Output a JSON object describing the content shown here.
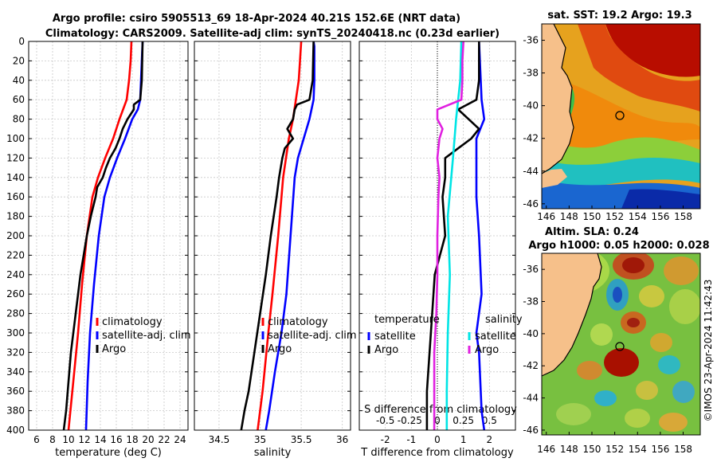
{
  "title_line1": "Argo profile: csiro 5905513_69 18-Apr-2024 40.21S 152.6E (NRT data)",
  "title_line2": "Climatology: CARS2009. Satellite-adj clim: synTS_20240418.nc (0.23d earlier)",
  "credit": "©IMOS 23-Apr-2024 11:42:43",
  "colors": {
    "climatology": "#ff0000",
    "satellite": "#0000ff",
    "argo": "#000000",
    "salinity_sat": "#00e5e5",
    "salinity_argo": "#e020e0"
  },
  "chart_data": [
    {
      "type": "line",
      "name": "temperature",
      "xlabel": "temperature (deg C)",
      "xlim": [
        5,
        25
      ],
      "xticks": [
        "6",
        "8",
        "10",
        "12",
        "14",
        "16",
        "18",
        "20",
        "22",
        "24"
      ],
      "ylim": [
        0,
        400
      ],
      "yticks": [
        "0",
        "20",
        "40",
        "60",
        "80",
        "100",
        "120",
        "140",
        "160",
        "180",
        "200",
        "220",
        "240",
        "260",
        "280",
        "300",
        "320",
        "340",
        "360",
        "380",
        "400"
      ],
      "legend": [
        "climatology",
        "satellite-adj. clim",
        "Argo"
      ],
      "series": [
        {
          "name": "climatology",
          "depth": [
            0,
            20,
            40,
            60,
            80,
            100,
            120,
            140,
            160,
            200,
            250,
            300,
            350,
            400
          ],
          "values": [
            17.9,
            17.8,
            17.6,
            17.3,
            16.4,
            15.6,
            14.6,
            13.7,
            13.0,
            12.3,
            11.7,
            11.2,
            10.6,
            10.0
          ]
        },
        {
          "name": "satellite-adj. clim",
          "depth": [
            0,
            20,
            40,
            60,
            70,
            80,
            100,
            120,
            140,
            160,
            200,
            250,
            300,
            350,
            400
          ],
          "values": [
            19.3,
            19.2,
            19.1,
            19.0,
            18.7,
            18.0,
            17.1,
            16.1,
            15.2,
            14.5,
            13.8,
            13.2,
            12.7,
            12.4,
            12.2
          ]
        },
        {
          "name": "Argo",
          "depth": [
            0,
            40,
            60,
            65,
            70,
            80,
            90,
            100,
            110,
            120,
            130,
            140,
            150,
            160,
            180,
            200,
            220,
            240,
            260,
            280,
            300,
            320,
            340,
            360,
            380,
            400
          ],
          "values": [
            19.3,
            19.2,
            19.0,
            18.2,
            18.2,
            17.4,
            16.8,
            16.4,
            15.9,
            15.2,
            14.7,
            14.3,
            13.6,
            13.4,
            12.8,
            12.3,
            11.9,
            11.5,
            11.2,
            10.9,
            10.6,
            10.3,
            10.1,
            9.9,
            9.7,
            9.4
          ]
        }
      ]
    },
    {
      "type": "line",
      "name": "salinity",
      "xlabel": "salinity",
      "xlim": [
        34.2,
        36.1
      ],
      "xticks": [
        "34.5",
        "35",
        "35.5",
        "36"
      ],
      "ylim": [
        0,
        400
      ],
      "legend": [
        "climatology",
        "satellite-adj. clim",
        "Argo"
      ],
      "series": [
        {
          "name": "climatology",
          "depth": [
            0,
            40,
            80,
            100,
            140,
            200,
            260,
            300,
            360,
            400
          ],
          "values": [
            35.5,
            35.47,
            35.4,
            35.35,
            35.28,
            35.22,
            35.15,
            35.1,
            35.03,
            34.97
          ]
        },
        {
          "name": "satellite-adj. clim",
          "depth": [
            0,
            5,
            40,
            60,
            80,
            100,
            120,
            140,
            200,
            260,
            300,
            340,
            380,
            400
          ],
          "values": [
            35.65,
            35.66,
            35.66,
            35.65,
            35.6,
            35.53,
            35.46,
            35.42,
            35.37,
            35.32,
            35.26,
            35.18,
            35.11,
            35.07
          ]
        },
        {
          "name": "Argo",
          "depth": [
            0,
            40,
            60,
            65,
            70,
            80,
            90,
            100,
            110,
            120,
            140,
            160,
            200,
            240,
            280,
            320,
            360,
            380,
            400
          ],
          "values": [
            35.65,
            35.64,
            35.6,
            35.45,
            35.42,
            35.4,
            35.33,
            35.4,
            35.3,
            35.27,
            35.23,
            35.2,
            35.13,
            35.07,
            35.0,
            34.93,
            34.86,
            34.81,
            34.77
          ]
        }
      ]
    },
    {
      "type": "line",
      "name": "difference",
      "xlabel": "T difference from climatology",
      "xlabel2": "S difference from climatology",
      "xlim": [
        -3,
        3
      ],
      "xticks": [
        "-2",
        "-1",
        "0",
        "1",
        "2"
      ],
      "xticks2": [
        "-0.5",
        "-0.25",
        "0",
        "0.25",
        "0.5"
      ],
      "ylim": [
        0,
        400
      ],
      "legend_temperature": [
        "temperature",
        "satellite",
        "Argo"
      ],
      "legend_salinity": [
        "salinity",
        "satellite",
        "Argo"
      ],
      "series": [
        {
          "name": "temperature satellite",
          "depth": [
            0,
            60,
            80,
            100,
            120,
            160,
            200,
            260,
            300,
            320,
            380,
            400
          ],
          "values": [
            1.6,
            1.7,
            1.8,
            1.5,
            1.5,
            1.5,
            1.6,
            1.7,
            1.5,
            1.6,
            1.7,
            1.8
          ]
        },
        {
          "name": "temperature Argo",
          "depth": [
            0,
            40,
            60,
            70,
            80,
            90,
            100,
            110,
            120,
            140,
            160,
            200,
            240,
            280,
            320,
            360,
            400
          ],
          "values": [
            1.6,
            1.6,
            1.5,
            0.8,
            1.2,
            1.6,
            1.3,
            0.8,
            0.3,
            0.3,
            0.2,
            0.3,
            -0.1,
            -0.2,
            -0.3,
            -0.4,
            -0.4
          ]
        },
        {
          "name": "salinity satellite",
          "depth": [
            0,
            40,
            80,
            120,
            180,
            240,
            300,
            360,
            400
          ],
          "values": [
            0.23,
            0.22,
            0.18,
            0.15,
            0.1,
            0.12,
            0.1,
            0.09,
            0.09
          ]
        },
        {
          "name": "salinity Argo",
          "depth": [
            0,
            20,
            40,
            60,
            70,
            80,
            90,
            100,
            120,
            140,
            160,
            200,
            240,
            280,
            320,
            360,
            400
          ],
          "values": [
            0.25,
            0.24,
            0.24,
            0.23,
            0.0,
            0.0,
            0.05,
            0.02,
            0.0,
            0.02,
            0.01,
            0.0,
            0.0,
            -0.01,
            -0.03,
            -0.03,
            -0.03
          ]
        }
      ]
    },
    {
      "type": "heatmap",
      "name": "sst map",
      "title": "sat. SST: 19.2 Argo: 19.3",
      "xticks": [
        "146",
        "148",
        "150",
        "152",
        "154",
        "156",
        "158"
      ],
      "yticks": [
        "-36",
        "-38",
        "-40",
        "-42",
        "-44",
        "-46"
      ]
    },
    {
      "type": "heatmap",
      "name": "sla map",
      "title1": "Altim. SLA: 0.24",
      "title2": "Argo h1000: 0.05 h2000: 0.028",
      "xticks": [
        "146",
        "148",
        "150",
        "152",
        "154",
        "156",
        "158"
      ],
      "yticks": [
        "-36",
        "-38",
        "-40",
        "-42",
        "-44",
        "-46"
      ]
    }
  ]
}
